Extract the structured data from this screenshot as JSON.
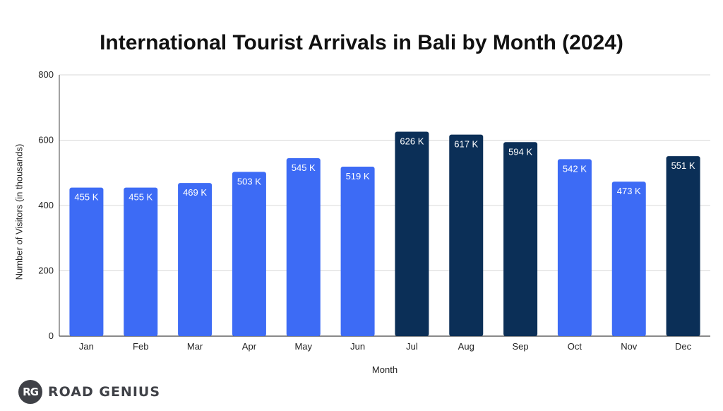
{
  "chart_data": {
    "type": "bar",
    "title": "International Tourist Arrivals in Bali by Month (2024)",
    "xlabel": "Month",
    "ylabel": "Number of Visitors (in thousands)",
    "categories": [
      "Jan",
      "Feb",
      "Mar",
      "Apr",
      "May",
      "Jun",
      "Jul",
      "Aug",
      "Sep",
      "Oct",
      "Nov",
      "Dec"
    ],
    "values": [
      455,
      455,
      469,
      503,
      545,
      519,
      626,
      617,
      594,
      542,
      473,
      551
    ],
    "data_labels": [
      "455 K",
      "455 K",
      "469 K",
      "503 K",
      "545 K",
      "519 K",
      "626 K",
      "617 K",
      "594 K",
      "542 K",
      "473 K",
      "551 K"
    ],
    "ylim": [
      0,
      800
    ],
    "yticks": [
      0,
      200,
      400,
      600,
      800
    ],
    "grid": true,
    "colors": {
      "normal": "#3d6bf5",
      "highlight": "#0b2f57",
      "grid": "#d9d9d9",
      "axis": "#444444"
    },
    "highlighted": [
      "Jul",
      "Aug",
      "Sep",
      "Dec"
    ]
  },
  "logo": {
    "badge": "RG",
    "text": "ROAD GENIUS"
  }
}
